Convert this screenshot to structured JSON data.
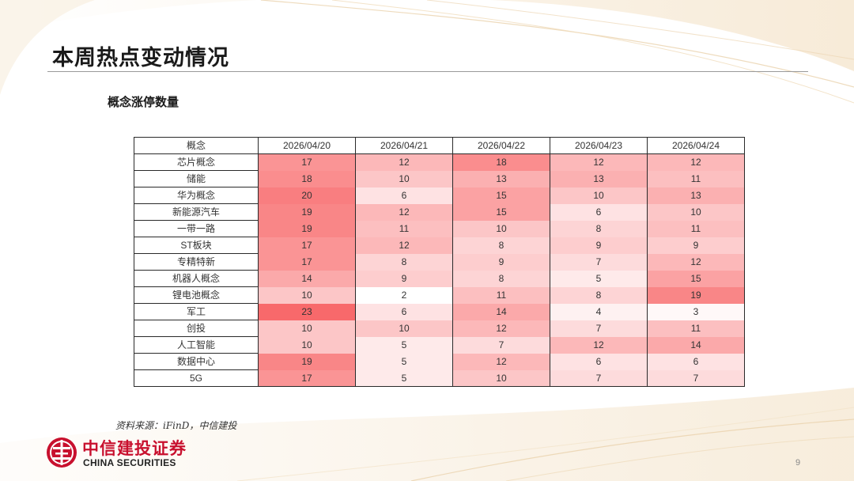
{
  "slide": {
    "title": "本周热点变动情况",
    "subtitle": "概念涨停数量",
    "source": "资料来源：iFinD，中信建投",
    "page_number": "9"
  },
  "brand": {
    "name_cn": "中信建投证券",
    "name_en": "CHINA SECURITIES",
    "color": "#c8102e"
  },
  "chart_data": {
    "type": "heatmap",
    "header": "概念",
    "dates": [
      "2026/04/20",
      "2026/04/21",
      "2026/04/22",
      "2026/04/23",
      "2026/04/24"
    ],
    "rows": [
      {
        "concept": "芯片概念",
        "values": [
          17,
          12,
          18,
          12,
          12
        ]
      },
      {
        "concept": "储能",
        "values": [
          18,
          10,
          13,
          13,
          11
        ]
      },
      {
        "concept": "华为概念",
        "values": [
          20,
          6,
          15,
          10,
          13
        ]
      },
      {
        "concept": "新能源汽车",
        "values": [
          19,
          12,
          15,
          6,
          10
        ]
      },
      {
        "concept": "一带一路",
        "values": [
          19,
          11,
          10,
          8,
          11
        ]
      },
      {
        "concept": "ST板块",
        "values": [
          17,
          12,
          8,
          9,
          9
        ]
      },
      {
        "concept": "专精特新",
        "values": [
          17,
          8,
          9,
          7,
          12
        ]
      },
      {
        "concept": "机器人概念",
        "values": [
          14,
          9,
          8,
          5,
          15
        ]
      },
      {
        "concept": "锂电池概念",
        "values": [
          10,
          2,
          11,
          8,
          19
        ]
      },
      {
        "concept": "军工",
        "values": [
          23,
          6,
          14,
          4,
          3
        ]
      },
      {
        "concept": "创投",
        "values": [
          10,
          10,
          12,
          7,
          11
        ]
      },
      {
        "concept": "人工智能",
        "values": [
          10,
          5,
          7,
          12,
          14
        ]
      },
      {
        "concept": "数据中心",
        "values": [
          19,
          5,
          12,
          6,
          6
        ]
      },
      {
        "concept": "5G",
        "values": [
          17,
          5,
          10,
          7,
          7
        ]
      }
    ],
    "color_scale": {
      "low": "#ffffff",
      "high": "#f8696b"
    }
  }
}
